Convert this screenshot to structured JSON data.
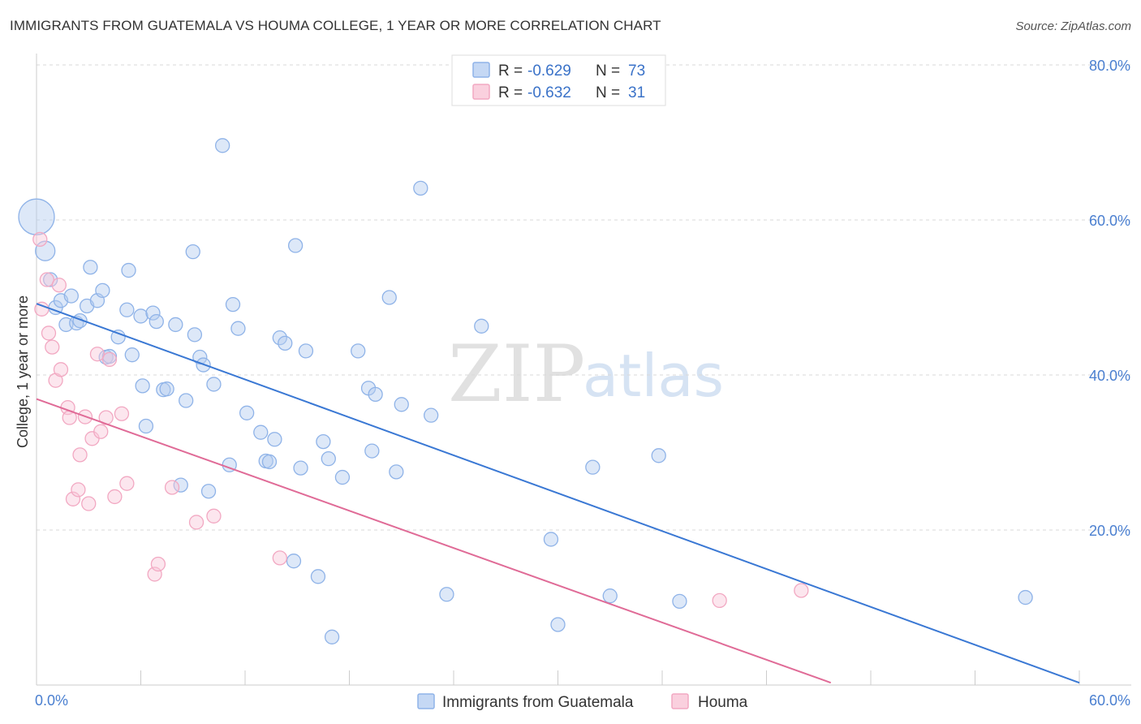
{
  "title": "IMMIGRANTS FROM GUATEMALA VS HOUMA COLLEGE, 1 YEAR OR MORE CORRELATION CHART",
  "source": "Source: ZipAtlas.com",
  "watermark": {
    "zip": "ZIP",
    "atlas": "atlas"
  },
  "legend": {
    "rows": [
      {
        "r_label": "R =",
        "r_value": "-0.629",
        "n_label": "N =",
        "n_value": "73"
      },
      {
        "r_label": "R =",
        "r_value": "-0.632",
        "n_label": "N =",
        "n_value": "31"
      }
    ]
  },
  "chart_data": {
    "type": "scatter",
    "title": "IMMIGRANTS FROM GUATEMALA VS HOUMA COLLEGE, 1 YEAR OR MORE CORRELATION CHART",
    "xlabel": "",
    "ylabel": "College, 1 year or more",
    "xlim": [
      0,
      60
    ],
    "ylim": [
      0,
      80
    ],
    "x_tick_labels": [
      "0.0%",
      "60.0%"
    ],
    "y_ticks": [
      20,
      40,
      60,
      80
    ],
    "y_tick_labels": [
      "20.0%",
      "40.0%",
      "60.0%",
      "80.0%"
    ],
    "grid": "horizontal dashed",
    "legend_position": "top-center",
    "colors": {
      "series1": "#8fb3e8",
      "series1_line": "#3a78d4",
      "series2": "#f2a8c2",
      "series2_line": "#e06b97"
    },
    "series": [
      {
        "name": "Immigrants from Guatemala",
        "r": -0.629,
        "n": 73,
        "trend": {
          "x": [
            0,
            60
          ],
          "y": [
            49.2,
            0.3
          ]
        },
        "points": [
          [
            0,
            60.4,
            3
          ],
          [
            0.5,
            56,
            2
          ],
          [
            0.8,
            52.3,
            1
          ],
          [
            1.1,
            48.7,
            1
          ],
          [
            1.4,
            49.6,
            1
          ],
          [
            1.7,
            46.5,
            1
          ],
          [
            2.0,
            50.2,
            1
          ],
          [
            2.3,
            46.7,
            1
          ],
          [
            2.5,
            47.0,
            1
          ],
          [
            2.9,
            48.9,
            1
          ],
          [
            3.1,
            53.9,
            1
          ],
          [
            3.5,
            49.6,
            1
          ],
          [
            3.8,
            50.9,
            1
          ],
          [
            4.0,
            42.3,
            1
          ],
          [
            4.2,
            42.4,
            1
          ],
          [
            4.7,
            44.9,
            1
          ],
          [
            5.2,
            48.4,
            1
          ],
          [
            5.3,
            53.5,
            1
          ],
          [
            5.5,
            42.6,
            1
          ],
          [
            6.0,
            47.6,
            1
          ],
          [
            6.1,
            38.6,
            1
          ],
          [
            6.3,
            33.4,
            1
          ],
          [
            6.7,
            48.0,
            1
          ],
          [
            6.9,
            46.9,
            1
          ],
          [
            7.3,
            38.1,
            1
          ],
          [
            7.5,
            38.2,
            1
          ],
          [
            8.0,
            46.5,
            1
          ],
          [
            8.3,
            25.8,
            1
          ],
          [
            8.6,
            36.7,
            1
          ],
          [
            9.0,
            55.9,
            1
          ],
          [
            9.1,
            45.2,
            1
          ],
          [
            9.4,
            42.3,
            1
          ],
          [
            9.6,
            41.3,
            1
          ],
          [
            9.9,
            25.0,
            1
          ],
          [
            10.2,
            38.8,
            1
          ],
          [
            10.7,
            69.6,
            1
          ],
          [
            11.1,
            28.4,
            1
          ],
          [
            11.3,
            49.1,
            1
          ],
          [
            11.6,
            46.0,
            1
          ],
          [
            12.1,
            35.1,
            1
          ],
          [
            12.9,
            32.6,
            1
          ],
          [
            13.2,
            28.9,
            1
          ],
          [
            13.4,
            28.8,
            1
          ],
          [
            13.7,
            31.7,
            1
          ],
          [
            14.0,
            44.8,
            1
          ],
          [
            14.3,
            44.1,
            1
          ],
          [
            14.8,
            16.0,
            1
          ],
          [
            14.9,
            56.7,
            1
          ],
          [
            15.2,
            28.0,
            1
          ],
          [
            15.5,
            43.1,
            1
          ],
          [
            16.2,
            14.0,
            1
          ],
          [
            16.5,
            31.4,
            1
          ],
          [
            16.8,
            29.2,
            1
          ],
          [
            17.0,
            6.2,
            1
          ],
          [
            17.6,
            26.8,
            1
          ],
          [
            18.5,
            43.1,
            1
          ],
          [
            19.1,
            38.3,
            1
          ],
          [
            19.3,
            30.2,
            1
          ],
          [
            19.5,
            37.5,
            1
          ],
          [
            20.3,
            50.0,
            1
          ],
          [
            20.7,
            27.5,
            1
          ],
          [
            21.0,
            36.2,
            1
          ],
          [
            22.1,
            64.1,
            1
          ],
          [
            22.7,
            34.8,
            1
          ],
          [
            23.6,
            11.7,
            1
          ],
          [
            25.6,
            46.3,
            1
          ],
          [
            29.6,
            18.8,
            1
          ],
          [
            30.0,
            7.8,
            1
          ],
          [
            32.0,
            28.1,
            1
          ],
          [
            33.0,
            11.5,
            1
          ],
          [
            35.8,
            29.6,
            1
          ],
          [
            37.0,
            10.8,
            1
          ],
          [
            56.9,
            11.3,
            1
          ]
        ]
      },
      {
        "name": "Houma",
        "r": -0.632,
        "n": 31,
        "trend": {
          "x": [
            0,
            45.7
          ],
          "y": [
            36.9,
            0.3
          ]
        },
        "points": [
          [
            0.2,
            57.5,
            1
          ],
          [
            0.3,
            48.5,
            1
          ],
          [
            0.6,
            52.3,
            1
          ],
          [
            0.7,
            45.4,
            1
          ],
          [
            0.9,
            43.6,
            1
          ],
          [
            1.1,
            39.3,
            1
          ],
          [
            1.3,
            51.6,
            1
          ],
          [
            1.4,
            40.7,
            1
          ],
          [
            1.8,
            35.8,
            1
          ],
          [
            1.9,
            34.5,
            1
          ],
          [
            2.1,
            24.0,
            1
          ],
          [
            2.4,
            25.2,
            1
          ],
          [
            2.5,
            29.7,
            1
          ],
          [
            2.8,
            34.6,
            1
          ],
          [
            3.0,
            23.4,
            1
          ],
          [
            3.2,
            31.8,
            1
          ],
          [
            3.5,
            42.7,
            1
          ],
          [
            3.7,
            32.7,
            1
          ],
          [
            4.0,
            34.5,
            1
          ],
          [
            4.2,
            42.0,
            1
          ],
          [
            4.5,
            24.3,
            1
          ],
          [
            4.9,
            35.0,
            1
          ],
          [
            5.2,
            26.0,
            1
          ],
          [
            6.8,
            14.3,
            1
          ],
          [
            7.0,
            15.6,
            1
          ],
          [
            7.8,
            25.5,
            1
          ],
          [
            9.2,
            21.0,
            1
          ],
          [
            10.2,
            21.8,
            1
          ],
          [
            14.0,
            16.4,
            1
          ],
          [
            39.3,
            10.9,
            1
          ],
          [
            44.0,
            12.2,
            1
          ]
        ]
      }
    ]
  }
}
